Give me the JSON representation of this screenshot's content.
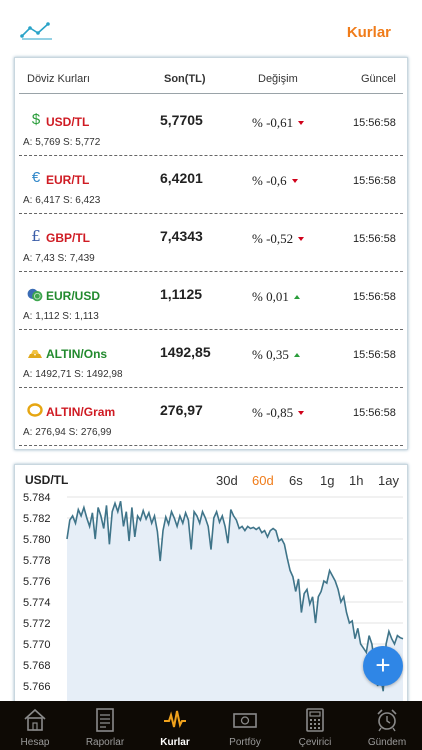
{
  "header": {
    "title": "Kurlar"
  },
  "table": {
    "columns": [
      "Döviz Kurları",
      "Son(TL)",
      "Değişim",
      "Güncel"
    ],
    "rows": [
      {
        "icon": "dollar-icon",
        "name": "USD/TL",
        "price": "5,7705",
        "change": "% -0,61",
        "direction": "down",
        "time": "15:56:58",
        "ask_bid": "A: 5,769  S: 5,772",
        "color": "#cf1b23"
      },
      {
        "icon": "euro-icon",
        "name": "EUR/TL",
        "price": "6,4201",
        "change": "% -0,6",
        "direction": "down",
        "time": "15:56:58",
        "ask_bid": "A: 6,417  S: 6,423",
        "color": "#cf1b23"
      },
      {
        "icon": "pound-icon",
        "name": "GBP/TL",
        "price": "7,4343",
        "change": "% -0,52",
        "direction": "down",
        "time": "15:56:58",
        "ask_bid": "A: 7,43  S: 7,439",
        "color": "#cf1b23"
      },
      {
        "icon": "coins-icon",
        "name": "EUR/USD",
        "price": "1,1125",
        "change": "% 0,01",
        "direction": "up",
        "time": "15:56:58",
        "ask_bid": "A: 1,112  S: 1,113",
        "color": "#228a2e"
      },
      {
        "icon": "gold-bars-icon",
        "name": "ALTIN/Ons",
        "price": "1492,85",
        "change": "% 0,35",
        "direction": "up",
        "time": "15:56:58",
        "ask_bid": "A: 1492,71  S: 1492,98",
        "color": "#228a2e"
      },
      {
        "icon": "gold-ring-icon",
        "name": "ALTIN/Gram",
        "price": "276,97",
        "change": "% -0,85",
        "direction": "down",
        "time": "15:56:58",
        "ask_bid": "A: 276,94  S: 276,99",
        "color": "#cf1b23"
      }
    ]
  },
  "chart": {
    "title": "USD/TL",
    "ranges": [
      "30d",
      "60d",
      "6s",
      "1g",
      "1h",
      "1ay"
    ],
    "active_range": "60d",
    "accent": "#f07c1a"
  },
  "chart_data": {
    "type": "area",
    "title": "USD/TL",
    "ylim": [
      5.765,
      5.785
    ],
    "yticks": [
      5.784,
      5.782,
      5.78,
      5.778,
      5.776,
      5.774,
      5.772,
      5.77,
      5.768,
      5.766
    ],
    "series": [
      {
        "values": [
          5.78,
          5.7818,
          5.7822,
          5.7815,
          5.7828,
          5.7822,
          5.783,
          5.782,
          5.7812,
          5.7825,
          5.78,
          5.783,
          5.7822,
          5.781,
          5.7832,
          5.7795,
          5.7826,
          5.7834,
          5.7826,
          5.7836,
          5.7812,
          5.7826,
          5.7798,
          5.783,
          5.7802,
          5.7822,
          5.7818,
          5.7827,
          5.7819,
          5.7825,
          5.7815,
          5.7822,
          5.7807,
          5.7779,
          5.7808,
          5.7821,
          5.7814,
          5.7826,
          5.782,
          5.7812,
          5.7822,
          5.7815,
          5.7825,
          5.7818,
          5.779,
          5.7826,
          5.7822,
          5.7815,
          5.7826,
          5.782,
          5.7812,
          5.779,
          5.782,
          5.7826,
          5.7816,
          5.7822,
          5.7812,
          5.7796,
          5.7828,
          5.7822,
          5.7818,
          5.781,
          5.7812,
          5.7808,
          5.7812,
          5.781,
          5.7811,
          5.7809,
          5.7811,
          5.7806,
          5.7808,
          5.7802,
          5.7808,
          5.781,
          5.7808,
          5.7798,
          5.78,
          5.7795,
          5.7782,
          5.777,
          5.7764,
          5.775,
          5.7762,
          5.773,
          5.7748,
          5.7752,
          5.7738,
          5.7745,
          5.772,
          5.7745,
          5.775,
          5.776,
          5.7758,
          5.777,
          5.7765,
          5.776,
          5.7752,
          5.774,
          5.7745,
          5.773,
          5.772,
          5.7722,
          5.7705,
          5.7715,
          5.77,
          5.7696,
          5.7692,
          5.7708,
          5.77,
          5.768,
          5.766,
          5.767,
          5.7655,
          5.77,
          5.7712,
          5.7705,
          5.77,
          5.7708,
          5.7706,
          5.7705
        ]
      }
    ]
  },
  "fab": {
    "label": "+"
  },
  "tabbar": {
    "items": [
      {
        "label": "Hesap",
        "icon": "home-icon"
      },
      {
        "label": "Raporlar",
        "icon": "report-icon"
      },
      {
        "label": "Kurlar",
        "icon": "pulse-icon"
      },
      {
        "label": "Portföy",
        "icon": "money-icon"
      },
      {
        "label": "Çevirici",
        "icon": "calculator-icon"
      },
      {
        "label": "Gündem",
        "icon": "alarm-clock-icon"
      }
    ],
    "active": "Kurlar"
  }
}
